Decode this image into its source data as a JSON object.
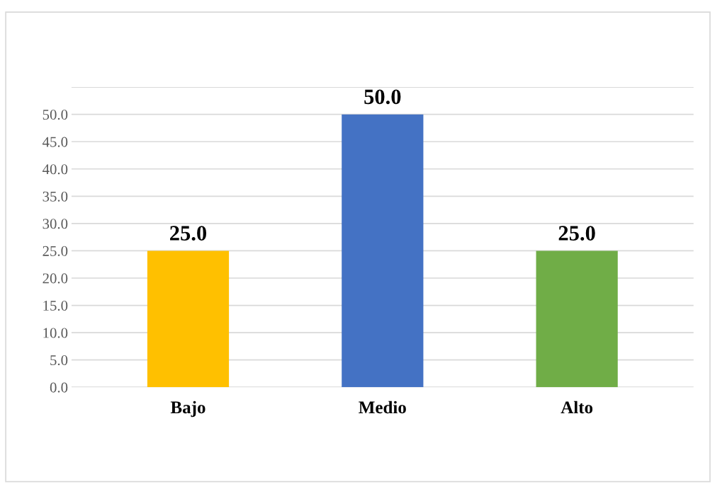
{
  "chart_data": {
    "type": "bar",
    "categories": [
      "Bajo",
      "Medio",
      "Alto"
    ],
    "values": [
      25,
      50,
      25
    ],
    "colors": [
      "#ffc000",
      "#4472c4",
      "#70ad47"
    ],
    "value_labels": [
      "25.0",
      "50.0",
      "25.0"
    ],
    "ylim": [
      0,
      55
    ],
    "yticks": [
      {
        "value": 0,
        "label": "0.0"
      },
      {
        "value": 5,
        "label": "5.0"
      },
      {
        "value": 10,
        "label": "10.0"
      },
      {
        "value": 15,
        "label": "15.0"
      },
      {
        "value": 20,
        "label": "20.0"
      },
      {
        "value": 25,
        "label": "25.0"
      },
      {
        "value": 30,
        "label": "30.0"
      },
      {
        "value": 35,
        "label": "35.0"
      },
      {
        "value": 40,
        "label": "40.0"
      },
      {
        "value": 45,
        "label": "45.0"
      },
      {
        "value": 50,
        "label": "50.0"
      },
      {
        "value": 55,
        "label": null
      }
    ],
    "grid": "y"
  }
}
